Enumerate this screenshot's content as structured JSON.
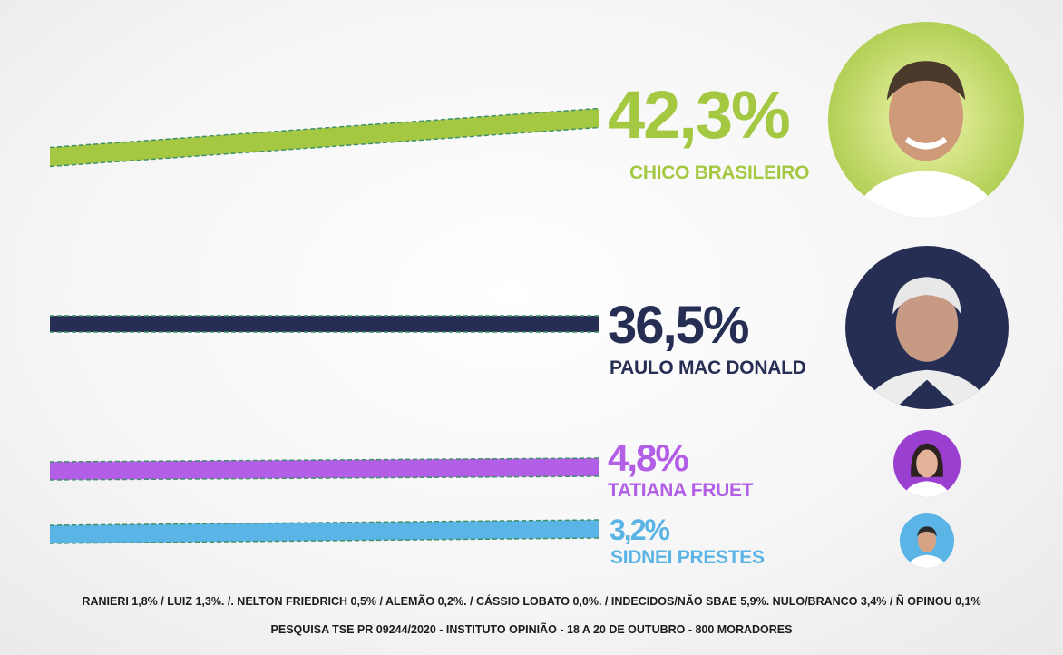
{
  "colors": {
    "chico": "#a5c843",
    "paulo": "#262e54",
    "tatiana": "#b25ee6",
    "sidnei": "#5ab4e5",
    "dash": "#3f8f6a"
  },
  "chart_data": {
    "type": "bar",
    "orientation": "horizontal",
    "series": [
      {
        "name": "CHICO BRASILEIRO",
        "value": 42.3,
        "label": "42,3%",
        "color": "#a5c843"
      },
      {
        "name": "PAULO MAC DONALD",
        "value": 36.5,
        "label": "36,5%",
        "color": "#262e54"
      },
      {
        "name": "TATIANA FRUET",
        "value": 4.8,
        "label": "4,8%",
        "color": "#b25ee6"
      },
      {
        "name": "SIDNEI PRESTES",
        "value": 3.2,
        "label": "3,2%",
        "color": "#5ab4e5"
      }
    ]
  },
  "candidates": [
    {
      "pct": "42,3%",
      "name": "CHICO BRASILEIRO",
      "avatar_icon": "chico-brasileiro-photo-icon"
    },
    {
      "pct": "36,5%",
      "name": "PAULO MAC DONALD",
      "avatar_icon": "paulo-mac-donald-photo-icon"
    },
    {
      "pct": "4,8%",
      "name": "TATIANA FRUET",
      "avatar_icon": "tatiana-fruet-photo-icon"
    },
    {
      "pct": "3,2%",
      "name": "SIDNEI PRESTES",
      "avatar_icon": "sidnei-prestes-photo-icon"
    }
  ],
  "footer": {
    "others": "RANIERI 1,8% / LUIZ 1,3%. /. NELTON FRIEDRICH 0,5%  / ALEMÃO 0,2%. / CÁSSIO LOBATO 0,0%. / INDECIDOS/NÃO SBAE 5,9%. NULO/BRANCO 3,4%  /  Ñ OPINOU 0,1%",
    "source": "PESQUISA TSE PR 09244/2020 - INSTITUTO OPINIÃO - 18 A 20 DE OUTUBRO - 800 MORADORES"
  }
}
